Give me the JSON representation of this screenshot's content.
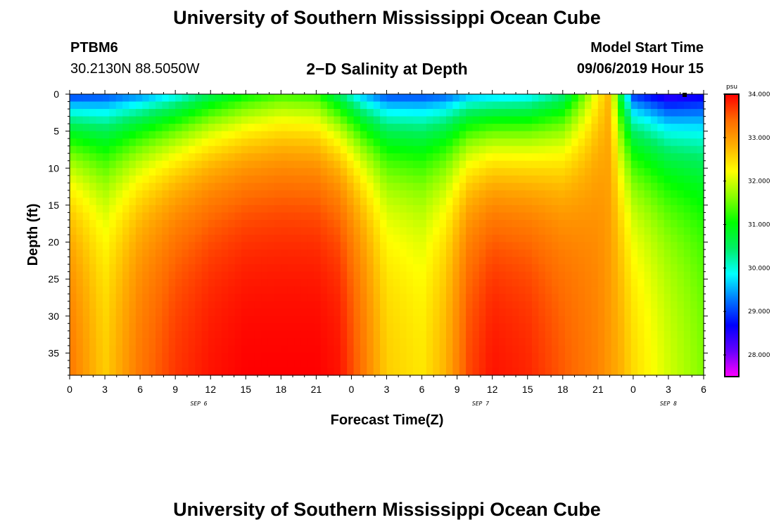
{
  "header": {
    "title": "University of Southern Mississippi Ocean Cube",
    "station": "PTBM6",
    "coordinates": "30.2130N 88.5050W",
    "subtitle": "2−D Salinity at Depth",
    "model_start_label": "Model Start Time",
    "model_start_value": "09/06/2019 Hour 15"
  },
  "footer": {
    "title": "University of Southern Mississippi Ocean Cube"
  },
  "chart_data": {
    "type": "heatmap",
    "title": "2-D Salinity at Depth",
    "xlabel": "Forecast Time(Z)",
    "ylabel": "Depth (ft)",
    "x_tick_labels": [
      "0",
      "3",
      "6",
      "9",
      "12",
      "15",
      "18",
      "21",
      "0",
      "3",
      "6",
      "9",
      "12",
      "15",
      "18",
      "21",
      "0",
      "3",
      "6"
    ],
    "x_hours_range": [
      0,
      54
    ],
    "day_labels": [
      {
        "label": "SEP 6",
        "hour": 11
      },
      {
        "label": "SEP 7",
        "hour": 35
      },
      {
        "label": "SEP 8",
        "hour": 51
      }
    ],
    "y_ticks": [
      0,
      5,
      10,
      15,
      20,
      25,
      30,
      35
    ],
    "ylim": [
      0,
      38
    ],
    "colorbar": {
      "unit": "psu",
      "ticks": [
        "34.000",
        "33.000",
        "32.000",
        "31.000",
        "30.000",
        "29.000",
        "28.000"
      ],
      "range": [
        27.5,
        34.0
      ],
      "colors": [
        "#ff00ff",
        "#6600ff",
        "#0000ff",
        "#0078ff",
        "#00ffff",
        "#00ee66",
        "#00ff00",
        "#88ff00",
        "#ffff00",
        "#ffb000",
        "#ff6a00",
        "#ff0000"
      ]
    },
    "salinity_profiles": [
      {
        "hour": 0,
        "s0": 28.9,
        "s38": 33.3
      },
      {
        "hour": 3,
        "s0": 29.0,
        "s38": 32.6
      },
      {
        "hour": 6,
        "s0": 29.3,
        "s38": 33.3
      },
      {
        "hour": 9,
        "s0": 29.8,
        "s38": 33.7
      },
      {
        "hour": 12,
        "s0": 30.5,
        "s38": 33.9
      },
      {
        "hour": 15,
        "s0": 31.0,
        "s38": 34.0
      },
      {
        "hour": 18,
        "s0": 31.3,
        "s38": 34.0
      },
      {
        "hour": 21,
        "s0": 31.2,
        "s38": 34.0
      },
      {
        "hour": 23,
        "s0": 30.4,
        "s38": 33.9
      },
      {
        "hour": 25,
        "s0": 29.5,
        "s38": 33.3
      },
      {
        "hour": 27,
        "s0": 29.0,
        "s38": 32.6
      },
      {
        "hour": 30,
        "s0": 29.0,
        "s38": 32.4
      },
      {
        "hour": 32,
        "s0": 29.1,
        "s38": 32.8
      },
      {
        "hour": 34,
        "s0": 29.5,
        "s38": 33.6
      },
      {
        "hour": 36,
        "s0": 29.6,
        "s38": 33.9
      },
      {
        "hour": 39,
        "s0": 29.7,
        "s38": 33.8
      },
      {
        "hour": 42,
        "s0": 30.3,
        "s38": 33.5
      },
      {
        "hour": 45,
        "s0": 32.3,
        "s38": 33.2
      },
      {
        "hour": 46,
        "s0": 32.8,
        "s38": 33.0
      },
      {
        "hour": 47,
        "s0": 30.5,
        "s38": 32.8
      },
      {
        "hour": 48,
        "s0": 28.9,
        "s38": 32.5
      },
      {
        "hour": 51,
        "s0": 28.3,
        "s38": 32.0
      },
      {
        "hour": 54,
        "s0": 28.5,
        "s38": 31.6
      }
    ]
  }
}
